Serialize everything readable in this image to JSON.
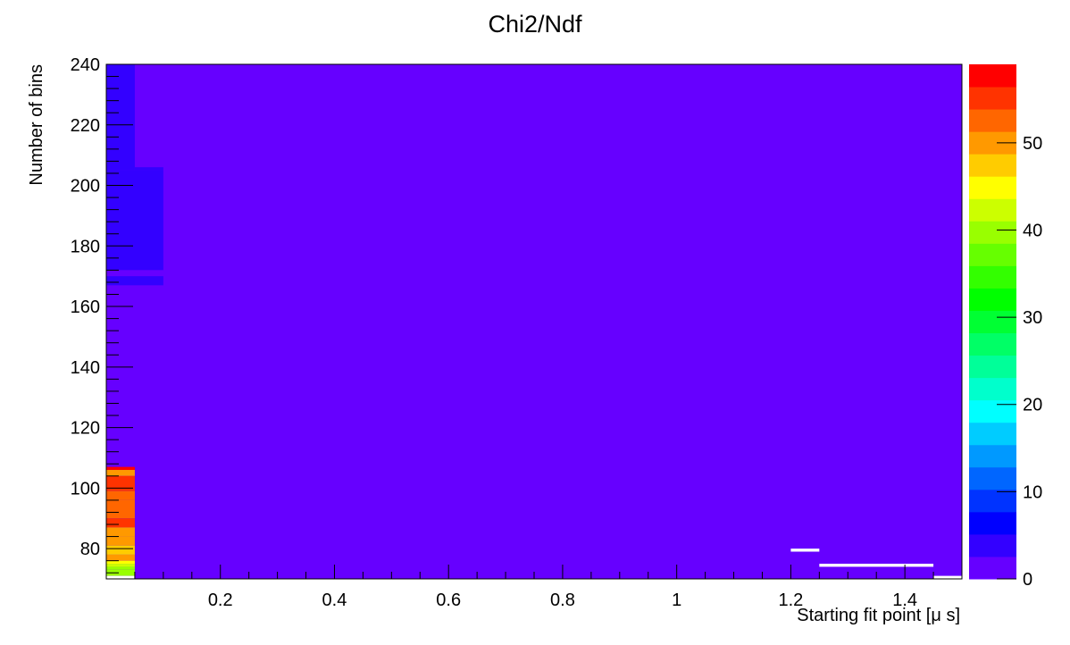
{
  "chart_data": {
    "type": "heatmap",
    "title": "Chi2/Ndf",
    "xlabel": "Starting fit point [μ s]",
    "ylabel": "Number of bins",
    "xlim": [
      0.0,
      1.5
    ],
    "ylim": [
      70,
      240
    ],
    "x_ticks": [
      0.2,
      0.4,
      0.6,
      0.8,
      1.0,
      1.2,
      1.4
    ],
    "x_tick_labels": [
      "0.2",
      "0.4",
      "0.6",
      "0.8",
      "1",
      "1.2",
      "1.4"
    ],
    "y_ticks": [
      80,
      100,
      120,
      140,
      160,
      180,
      200,
      220,
      240
    ],
    "y_tick_labels": [
      "80",
      "100",
      "120",
      "140",
      "160",
      "180",
      "200",
      "220",
      "240"
    ],
    "zlim": [
      0,
      59
    ],
    "z_ticks": [
      0,
      10,
      20,
      30,
      40,
      50
    ],
    "z_tick_labels": [
      "0",
      "10",
      "20",
      "30",
      "40",
      "50"
    ],
    "palette": [
      "#6600ff",
      "#3300ff",
      "#0000ff",
      "#0033ff",
      "#0066ff",
      "#0099ff",
      "#00ccff",
      "#00ffff",
      "#00ffcc",
      "#00ff99",
      "#00ff66",
      "#00ff33",
      "#00ff00",
      "#33ff00",
      "#66ff00",
      "#99ff00",
      "#ccff00",
      "#ffff00",
      "#ffcc00",
      "#ff9900",
      "#ff6600",
      "#ff3300",
      "#ff0000"
    ],
    "background_value": 1.0,
    "cells": [
      {
        "x": [
          0.0,
          0.05
        ],
        "y": [
          205,
          240
        ],
        "z": 5
      },
      {
        "x": [
          0.05,
          0.1
        ],
        "y": [
          205,
          206
        ],
        "z": 5
      },
      {
        "x": [
          0.0,
          0.1
        ],
        "y": [
          172,
          205
        ],
        "z": 4
      },
      {
        "x": [
          0.0,
          0.1
        ],
        "y": [
          170,
          172
        ],
        "z": 2
      },
      {
        "x": [
          0.0,
          0.1
        ],
        "y": [
          167,
          170
        ],
        "z": 4
      },
      {
        "x": [
          0.0,
          0.05
        ],
        "y": [
          106,
          107
        ],
        "z": 57
      },
      {
        "x": [
          0.0,
          0.05
        ],
        "y": [
          104,
          106
        ],
        "z": 51
      },
      {
        "x": [
          0.0,
          0.05
        ],
        "y": [
          99,
          104
        ],
        "z": 56
      },
      {
        "x": [
          0.0,
          0.05
        ],
        "y": [
          96,
          99
        ],
        "z": 53
      },
      {
        "x": [
          0.0,
          0.05
        ],
        "y": [
          90,
          96
        ],
        "z": 52
      },
      {
        "x": [
          0.0,
          0.05
        ],
        "y": [
          87,
          90
        ],
        "z": 55
      },
      {
        "x": [
          0.0,
          0.05
        ],
        "y": [
          84,
          87
        ],
        "z": 51
      },
      {
        "x": [
          0.0,
          0.05
        ],
        "y": [
          81,
          84
        ],
        "z": 50
      },
      {
        "x": [
          0.0,
          0.05
        ],
        "y": [
          78,
          81
        ],
        "z": 48
      },
      {
        "x": [
          0.0,
          0.05
        ],
        "y": [
          76,
          78
        ],
        "z": 51
      },
      {
        "x": [
          0.0,
          0.05
        ],
        "y": [
          75,
          76
        ],
        "z": 45
      },
      {
        "x": [
          0.0,
          0.05
        ],
        "y": [
          74,
          75
        ],
        "z": 43
      },
      {
        "x": [
          0.0,
          0.05
        ],
        "y": [
          73,
          74
        ],
        "z": 41
      },
      {
        "x": [
          0.0,
          0.05
        ],
        "y": [
          71,
          73
        ],
        "z": 39
      }
    ],
    "empty_cells": [
      {
        "x": [
          0.0,
          0.05
        ],
        "y": [
          70,
          71
        ]
      },
      {
        "x": [
          1.2,
          1.25
        ],
        "y": [
          79,
          80
        ]
      },
      {
        "x": [
          1.25,
          1.45
        ],
        "y": [
          74,
          75
        ]
      },
      {
        "x": [
          1.45,
          1.5
        ],
        "y": [
          70,
          71
        ]
      }
    ],
    "grid": false,
    "legend": "none"
  }
}
